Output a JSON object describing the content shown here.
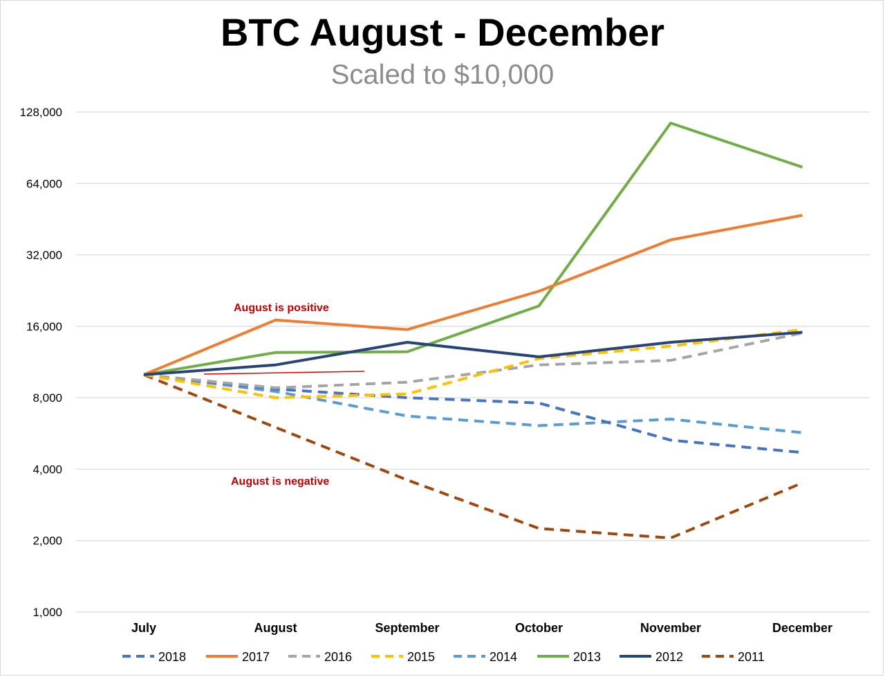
{
  "chart_data": {
    "type": "line",
    "title": "BTC August - December",
    "subtitle": "Scaled to $10,000",
    "x": [
      "July",
      "August",
      "September",
      "October",
      "November",
      "December"
    ],
    "yscale": "log2",
    "ylim": [
      1000,
      128000
    ],
    "yticks": [
      "1,000",
      "2,000",
      "4,000",
      "8,000",
      "16,000",
      "32,000",
      "64,000",
      "128,000"
    ],
    "ytick_values": [
      1000,
      2000,
      4000,
      8000,
      16000,
      32000,
      64000,
      128000
    ],
    "grid": true,
    "legend": "bottom",
    "series": [
      {
        "name": "2018",
        "values": [
          10000,
          8700,
          8000,
          7600,
          5300,
          4700
        ],
        "color": "#4472c4",
        "dashed": true
      },
      {
        "name": "2017",
        "values": [
          10000,
          17000,
          15500,
          22500,
          37000,
          47000
        ],
        "color": "#ed7d31",
        "dashed": false
      },
      {
        "name": "2016",
        "values": [
          10000,
          8800,
          9300,
          11000,
          11500,
          15000
        ],
        "color": "#a5a5a5",
        "dashed": true
      },
      {
        "name": "2015",
        "values": [
          10000,
          8000,
          8300,
          11700,
          13200,
          15500
        ],
        "color": "#ffc000",
        "dashed": true
      },
      {
        "name": "2014",
        "values": [
          10000,
          8500,
          6700,
          6100,
          6500,
          5700
        ],
        "color": "#5b9bd5",
        "dashed": true
      },
      {
        "name": "2013",
        "values": [
          10000,
          12400,
          12500,
          19500,
          115000,
          75000
        ],
        "color": "#70ad47",
        "dashed": false
      },
      {
        "name": "2012",
        "values": [
          10000,
          11000,
          13700,
          11900,
          13700,
          15100
        ],
        "color": "#264478",
        "dashed": false
      },
      {
        "name": "2011",
        "values": [
          10000,
          6000,
          3600,
          2250,
          2050,
          3500
        ],
        "color": "#9e480e",
        "dashed": true
      }
    ],
    "annotations": [
      "August is positive",
      "August is negative"
    ]
  }
}
